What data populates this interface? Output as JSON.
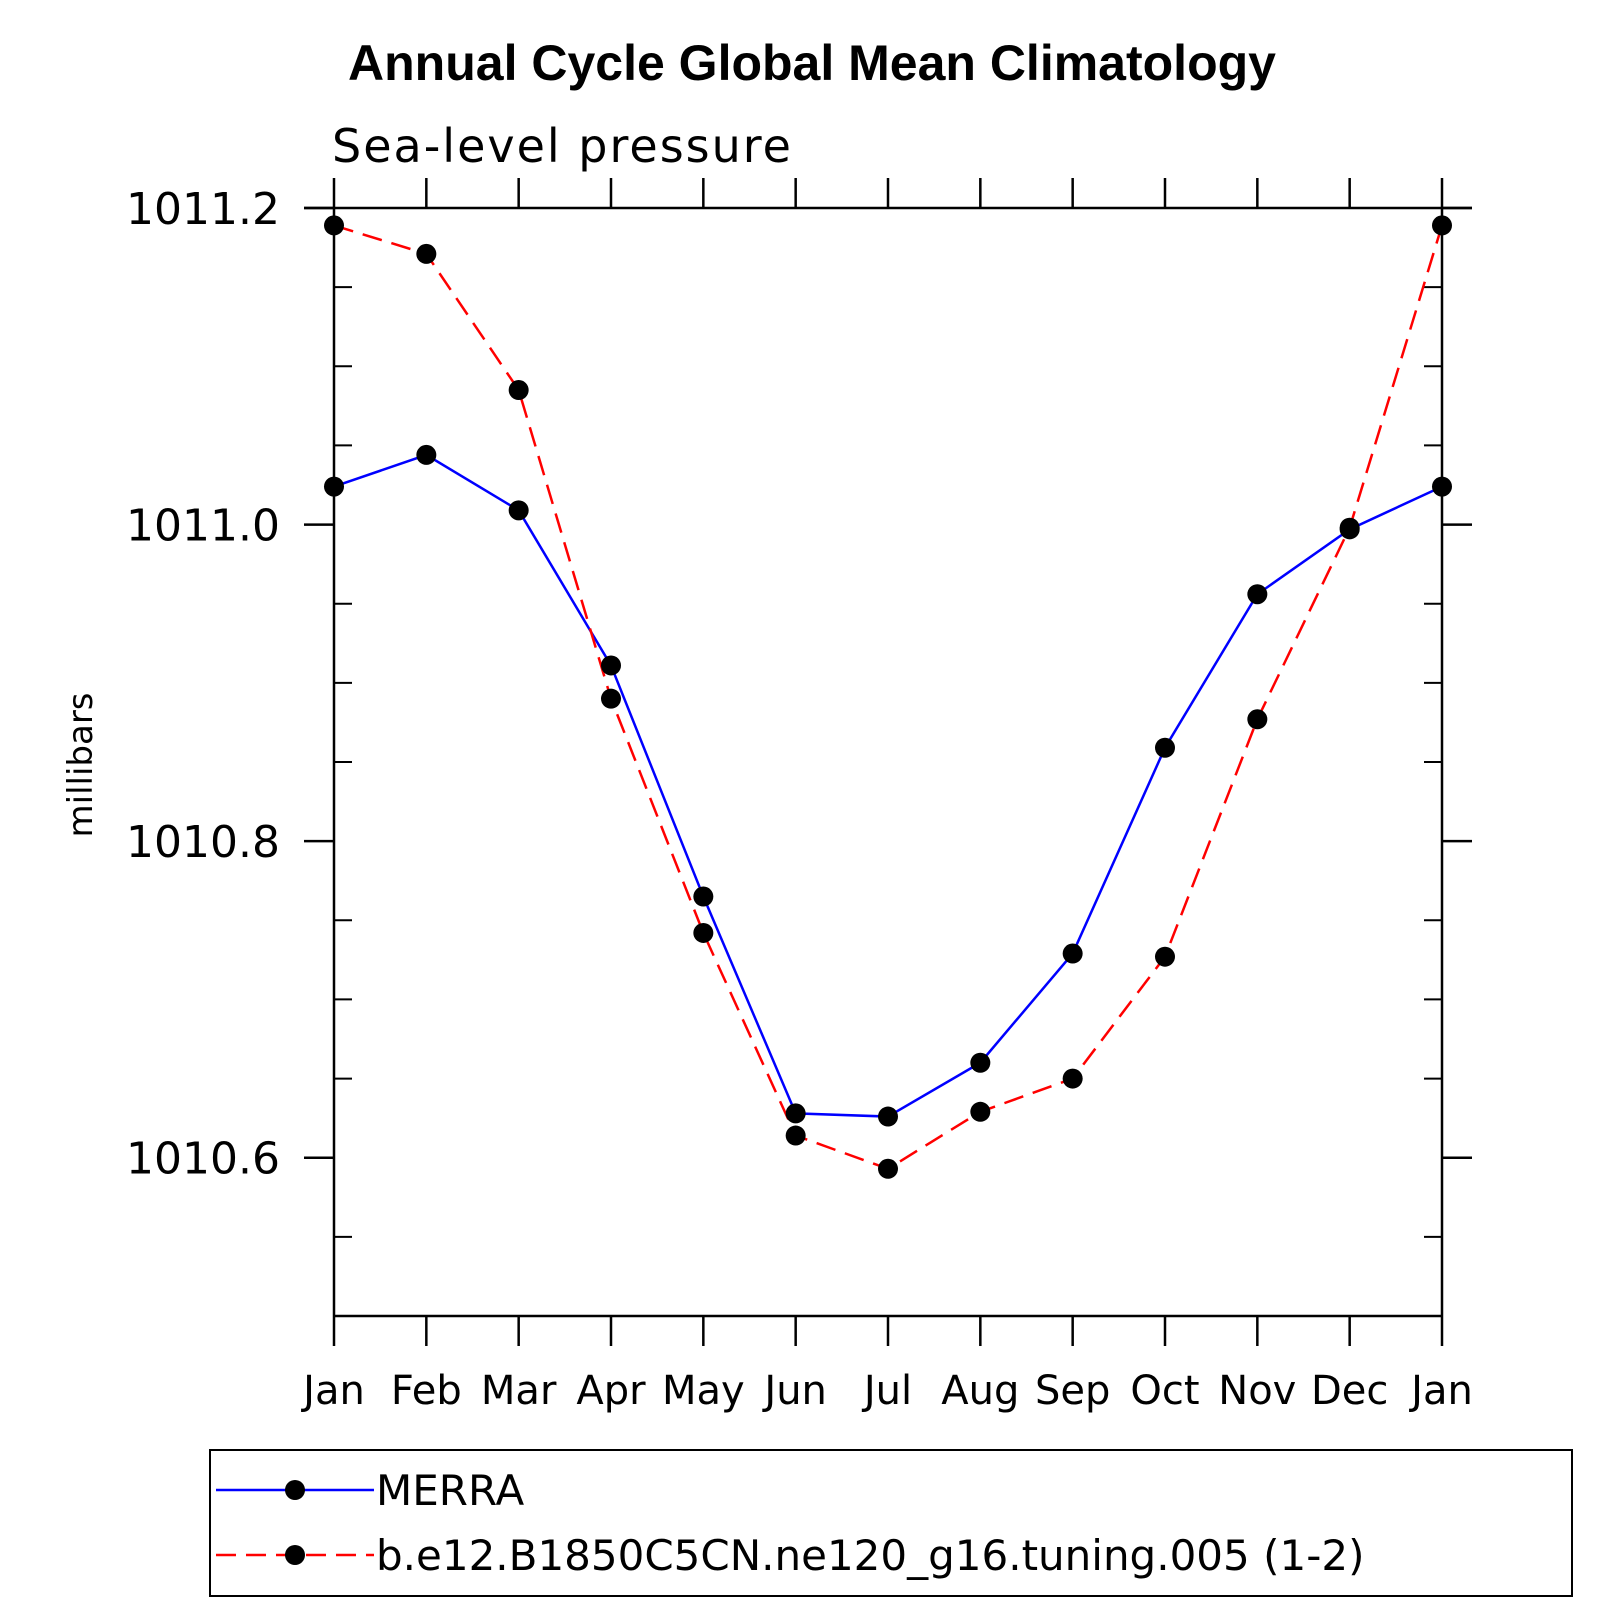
{
  "chart_data": {
    "type": "line",
    "title": "Annual Cycle Global Mean Climatology",
    "subtitle": "Sea-level pressure",
    "xlabel": "",
    "ylabel": "millibars",
    "categories": [
      "Jan",
      "Feb",
      "Mar",
      "Apr",
      "May",
      "Jun",
      "Jul",
      "Aug",
      "Sep",
      "Oct",
      "Nov",
      "Dec",
      "Jan"
    ],
    "yticks": [
      "1010.6",
      "1010.8",
      "1011.0",
      "1011.2"
    ],
    "ylim": [
      1010.5,
      1011.2
    ],
    "grid": false,
    "legend_position": "bottom",
    "series": [
      {
        "name": "MERRA",
        "color": "#0000ff",
        "line_style": "solid",
        "marker": "filled-circle",
        "values": [
          1011.024,
          1011.044,
          1011.009,
          1010.911,
          1010.765,
          1010.628,
          1010.626,
          1010.66,
          1010.729,
          1010.859,
          1010.956,
          1010.997,
          1011.024
        ]
      },
      {
        "name": "b.e12.B1850C5CN.ne120_g16.tuning.005 (1-2)",
        "color": "#ff0000",
        "line_style": "dashed",
        "marker": "filled-circle",
        "values": [
          1011.189,
          1011.171,
          1011.085,
          1010.89,
          1010.742,
          1010.614,
          1010.593,
          1010.629,
          1010.65,
          1010.727,
          1010.877,
          1010.998,
          1011.189
        ]
      }
    ]
  }
}
